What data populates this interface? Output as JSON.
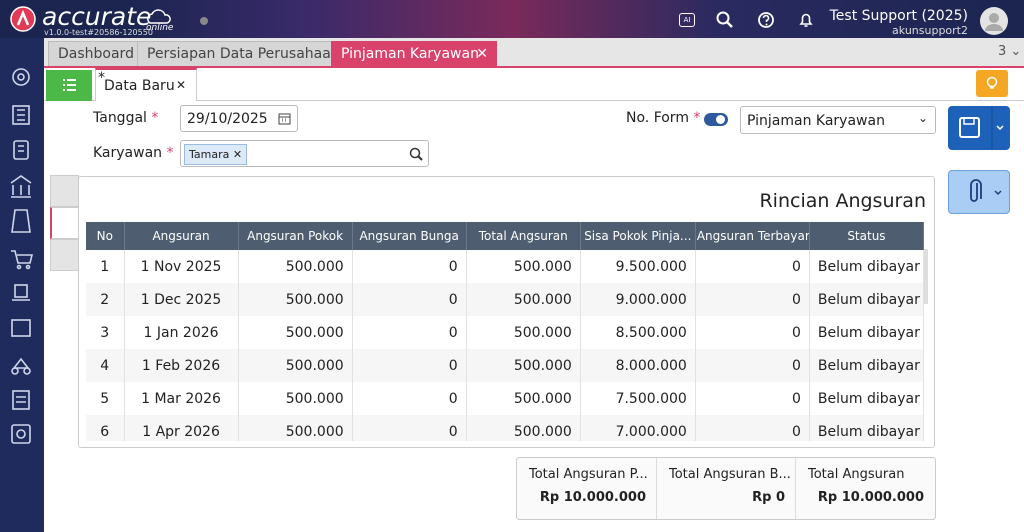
{
  "header": {
    "logo": "accurate",
    "logo_sub": "online",
    "version": "v1.0.0-test#20586-120550",
    "ai_badge": "AI",
    "user_name": "Test Support (2025)",
    "user_id": "akunsupport2"
  },
  "tabs": [
    "Dashboard",
    "Persiapan Data Perusahaan",
    "Pinjaman Karyawan"
  ],
  "tab_count": "3",
  "doc_tab": {
    "modified": "*",
    "title": "Data Baru"
  },
  "form": {
    "required": "*",
    "tanggal_label": "Tanggal",
    "tanggal_value": "29/10/2025",
    "karyawan_label": "Karyawan",
    "karyawan_value": "Tamara",
    "no_form_label": "No. Form",
    "no_form_value": "Pinjaman Karyawan"
  },
  "table": {
    "title": "Rincian Angsuran",
    "columns": [
      "No",
      "Angsuran",
      "Angsuran Pokok",
      "Angsuran Bunga",
      "Total Angsuran",
      "Sisa Pokok Pinja...",
      "Angsuran Terbayar",
      "Status"
    ],
    "rows": [
      [
        "1",
        "1 Nov 2025",
        "500.000",
        "0",
        "500.000",
        "9.500.000",
        "0",
        "Belum dibayar"
      ],
      [
        "2",
        "1 Dec 2025",
        "500.000",
        "0",
        "500.000",
        "9.000.000",
        "0",
        "Belum dibayar"
      ],
      [
        "3",
        "1 Jan 2026",
        "500.000",
        "0",
        "500.000",
        "8.500.000",
        "0",
        "Belum dibayar"
      ],
      [
        "4",
        "1 Feb 2026",
        "500.000",
        "0",
        "500.000",
        "8.000.000",
        "0",
        "Belum dibayar"
      ],
      [
        "5",
        "1 Mar 2026",
        "500.000",
        "0",
        "500.000",
        "7.500.000",
        "0",
        "Belum dibayar"
      ],
      [
        "6",
        "1 Apr 2026",
        "500.000",
        "0",
        "500.000",
        "7.000.000",
        "0",
        "Belum dibayar"
      ]
    ]
  },
  "summary": {
    "labels": [
      "Total Angsuran P...",
      "Total Angsuran B...",
      "Total Angsuran"
    ],
    "values": [
      "Rp 10.000.000",
      "Rp 0",
      "Rp 10.000.000"
    ]
  }
}
